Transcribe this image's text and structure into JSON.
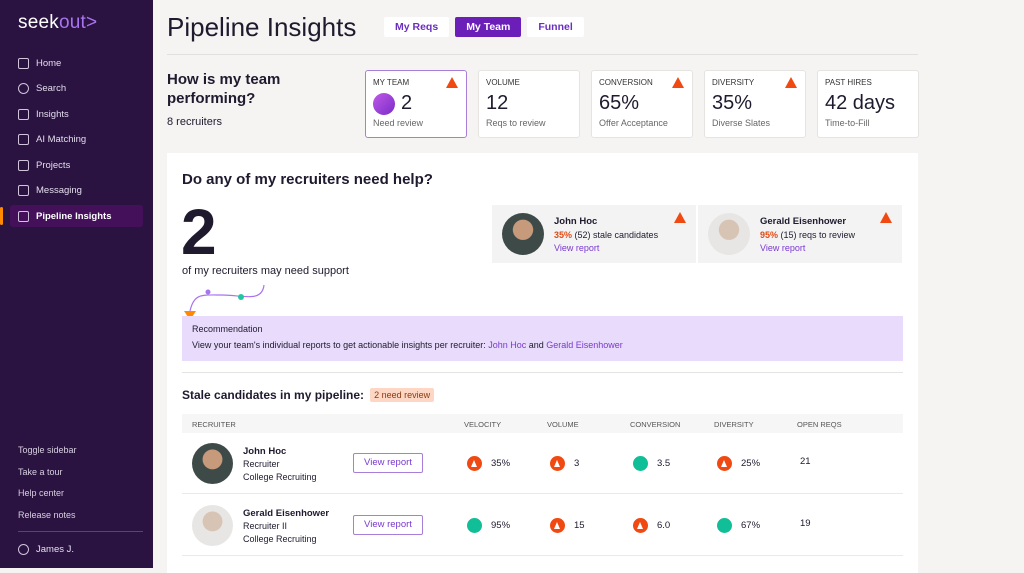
{
  "sidebar": {
    "logo_a": "seek",
    "logo_b": "out>",
    "items": [
      {
        "label": "Home",
        "icon": "grid-icon"
      },
      {
        "label": "Search",
        "icon": "at-icon"
      },
      {
        "label": "Insights",
        "icon": "chart-icon"
      },
      {
        "label": "AI Matching",
        "icon": "robot-icon"
      },
      {
        "label": "Projects",
        "icon": "folder-icon"
      },
      {
        "label": "Messaging",
        "icon": "message-icon"
      },
      {
        "label": "Pipeline Insights",
        "icon": "funnel-icon",
        "active": true
      }
    ],
    "bottom": [
      "Toggle sidebar",
      "Take a tour",
      "Help center",
      "Release notes"
    ],
    "user": "James J."
  },
  "header": {
    "title": "Pipeline Insights",
    "tabs": [
      "My Reqs",
      "My Team",
      "Funnel"
    ],
    "active_tab": "My Team"
  },
  "summary": {
    "question": "How is my team performing?",
    "count": "8 recruiters",
    "cards": [
      {
        "label": "MY TEAM",
        "value": "2",
        "sub": "Need review",
        "warn": true
      },
      {
        "label": "VOLUME",
        "value": "12",
        "sub": "Reqs to review",
        "warn": false
      },
      {
        "label": "CONVERSION",
        "value": "65%",
        "sub": "Offer Acceptance",
        "warn": true
      },
      {
        "label": "DIVERSITY",
        "value": "35%",
        "sub": "Diverse Slates",
        "warn": true
      },
      {
        "label": "PAST HIRES",
        "value": "42 days",
        "sub": "Time-to-Fill",
        "warn": false
      }
    ]
  },
  "help": {
    "title": "Do any of my recruiters need help?",
    "big": "2",
    "big_sub": "of my recruiters may need support",
    "recruiters": [
      {
        "name": "John Hoc",
        "pct": "35%",
        "detail": " (52) stale candidates",
        "link": "View report"
      },
      {
        "name": "Gerald Eisenhower",
        "pct": "95%",
        "detail": " (15) reqs to review",
        "link": "View report"
      }
    ],
    "reco_title": "Recommendation",
    "reco_text": "View your team's individual reports to get actionable insights per recruiter: ",
    "reco_link1": "John Hoc",
    "reco_and": " and ",
    "reco_link2": "Gerald Eisenhower"
  },
  "stale": {
    "title": "Stale candidates in my pipeline:",
    "badge": "2 need review",
    "columns": [
      "RECRUITER",
      "VELOCITY",
      "VOLUME",
      "CONVERSION",
      "DIVERSITY",
      "OPEN REQS"
    ],
    "rows": [
      {
        "name": "John Hoc",
        "role": "Recruiter",
        "team": "College Recruiting",
        "button": "View report",
        "velocity": "35%",
        "volume": "3",
        "conversion": "3.5",
        "diversity": "25%",
        "open_reqs": "21",
        "status": [
          "warn",
          "warn",
          "ok",
          "warn"
        ]
      },
      {
        "name": "Gerald Eisenhower",
        "role": "Recruiter II",
        "team": "College Recruiting",
        "button": "View report",
        "velocity": "95%",
        "volume": "15",
        "conversion": "6.0",
        "diversity": "67%",
        "open_reqs": "19",
        "status": [
          "ok",
          "warn",
          "warn",
          "ok"
        ]
      }
    ]
  },
  "colors": {
    "sidebar": "#2a1340",
    "accent": "#6b1fb8",
    "warning": "#f04a12",
    "ok": "#10bf97"
  }
}
